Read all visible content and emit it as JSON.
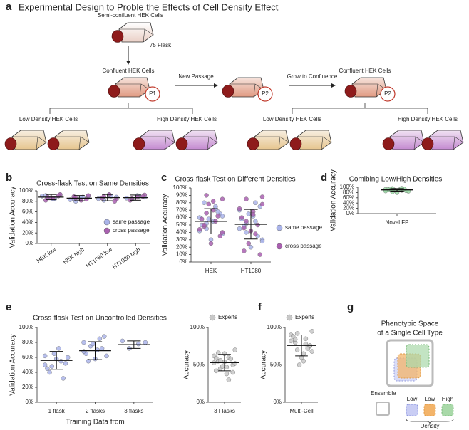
{
  "figure_title": "Experimental Design to Proble the Effects of Cell Density Effect",
  "panel_labels": [
    "a",
    "b",
    "c",
    "d",
    "e",
    "f",
    "g"
  ],
  "diagram_a": {
    "semi_confluent": "Semi-confluent HEK Cells",
    "flask_type": "T75 Flask",
    "confluent_1": "Confluent HEK Cells",
    "p1": "P1",
    "new_passage": "New Passage",
    "p2_a": "P2",
    "grow": "Grow to Confluence",
    "confluent_2": "Confluent HEK Cells",
    "p2_b": "P2",
    "low_1": "Low Density HEK Cells",
    "high_1": "High Density HEK Cells",
    "low_2": "Low Density HEK Cells",
    "high_2": "High Density HEK Cells"
  },
  "diagram_g": {
    "title_1": "Phenotypic Space",
    "title_2": "of a Single Cell Type",
    "ensemble": "Ensemble",
    "low_1": "Low",
    "low_2": "Low",
    "high": "High",
    "density": "Density"
  },
  "chart_data": [
    {
      "type": "strip",
      "title": "Cross-flask Test on Same Densities",
      "y_label": "Validation Accuracy",
      "categories": [
        "HEK low",
        "HEK high",
        "HT1080 low",
        "HT1080 high"
      ],
      "series": [
        {
          "name": "same passage",
          "color": "#aab4ea",
          "values": [
            [
              90,
              85,
              88,
              92,
              84,
              91
            ],
            [
              83,
              88,
              80,
              90,
              86,
              85
            ],
            [
              85,
              90,
              82,
              88,
              92
            ],
            [
              86,
              90,
              84,
              88,
              91
            ]
          ]
        },
        {
          "name": "cross passage",
          "color": "#a960b0",
          "values": [
            [
              88,
              93,
              86,
              82,
              90,
              87
            ],
            [
              86,
              91,
              82,
              89,
              84
            ],
            [
              89,
              84,
              93,
              86,
              80
            ],
            [
              85,
              92,
              88,
              82,
              89
            ]
          ]
        }
      ],
      "mean": [
        88,
        86,
        87,
        87
      ],
      "sd": [
        5,
        5,
        6,
        5
      ],
      "legend": "lower right",
      "ylim": [
        0,
        100
      ],
      "yticks": [
        {
          "value": 0,
          "label": "0%"
        },
        {
          "value": 20,
          "label": "20%"
        },
        {
          "value": 40,
          "label": "40%"
        },
        {
          "value": 60,
          "label": "60%"
        },
        {
          "value": 80,
          "label": "80%"
        },
        {
          "value": 100,
          "label": "100%"
        }
      ]
    },
    {
      "type": "strip",
      "title": "Cross-flask Test on Different Densities",
      "y_label": "Validation Accuracy",
      "categories": [
        "HEK",
        "HT1080"
      ],
      "series": [
        {
          "name": "same passage",
          "color": "#aab4ea",
          "values": [
            [
              60,
              72,
              45,
              38,
              55,
              80,
              65,
              30,
              50,
              68,
              58,
              42,
              75,
              52,
              62
            ],
            [
              70,
              55,
              40,
              30,
              62,
              48,
              75,
              20,
              58,
              35,
              65,
              45,
              80,
              52,
              28
            ]
          ]
        },
        {
          "name": "cross passage",
          "color": "#a960b0",
          "values": [
            [
              90,
              85,
              70,
              48,
              35,
              25,
              58,
              62,
              78,
              44,
              55,
              66,
              40,
              82,
              50
            ],
            [
              85,
              78,
              68,
              15,
              10,
              42,
              60,
              50,
              25,
              72,
              38,
              55,
              88,
              64,
              46
            ]
          ]
        }
      ],
      "mean": [
        55,
        51
      ],
      "sd": [
        17,
        20
      ],
      "legend": "right",
      "ylim": [
        0,
        100
      ],
      "yticks": [
        {
          "value": 0,
          "label": "0%"
        },
        {
          "value": 10,
          "label": "10%"
        },
        {
          "value": 20,
          "label": "20%"
        },
        {
          "value": 30,
          "label": "30%"
        },
        {
          "value": 40,
          "label": "40%"
        },
        {
          "value": 50,
          "label": "50%"
        },
        {
          "value": 60,
          "label": "60%"
        },
        {
          "value": 70,
          "label": "70%"
        },
        {
          "value": 80,
          "label": "80%"
        },
        {
          "value": 90,
          "label": "90%"
        },
        {
          "value": 100,
          "label": "100%"
        }
      ]
    },
    {
      "type": "strip",
      "title": "Comibing Low/High Densities",
      "y_label": "Validation Accuracy",
      "categories": [
        "Novel FP"
      ],
      "series": [
        {
          "color": "#9ad9a6",
          "values": [
            [
              92,
              88,
              95,
              85,
              90,
              93,
              87,
              80,
              91,
              94,
              89,
              86,
              96,
              83
            ]
          ]
        }
      ],
      "mean": [
        90
      ],
      "sd": [
        5
      ],
      "ylim": [
        0,
        100
      ],
      "yticks": [
        {
          "value": 0,
          "label": "0%"
        },
        {
          "value": 20,
          "label": "20%"
        },
        {
          "value": 40,
          "label": "40%"
        },
        {
          "value": 60,
          "label": "60%"
        },
        {
          "value": 80,
          "label": "80%"
        },
        {
          "value": 100,
          "label": "100%"
        }
      ]
    },
    {
      "type": "strip",
      "title": "Cross-flask Test on Uncontrolled Densities",
      "y_label": "Validation Accuracy",
      "x_label": "Training Data from",
      "categories": [
        "1 flask",
        "2 flasks",
        "3 flasks"
      ],
      "series": [
        {
          "color": "#aab4ea",
          "values": [
            [
              62,
              55,
              48,
              60,
              72,
              40,
              52,
              58,
              45,
              32,
              65,
              50
            ],
            [
              80,
              85,
              75,
              62,
              70,
              55,
              88,
              58,
              65,
              72,
              78,
              68
            ],
            [
              82,
              78,
              72,
              80
            ]
          ]
        }
      ],
      "mean": [
        56,
        69,
        77
      ],
      "sd": [
        12,
        12,
        5
      ],
      "ylim": [
        0,
        100
      ],
      "yticks": [
        {
          "value": 0,
          "label": "0%"
        },
        {
          "value": 20,
          "label": "20%"
        },
        {
          "value": 40,
          "label": "40%"
        },
        {
          "value": 60,
          "label": "60%"
        },
        {
          "value": 80,
          "label": "80%"
        },
        {
          "value": 100,
          "label": "100%"
        }
      ]
    },
    {
      "type": "strip",
      "y_label": "Accuracy",
      "categories": [
        "3 Flasks"
      ],
      "series": [
        {
          "name": "Experts",
          "color": "#c8c8c8",
          "values": [
            [
              53,
              60,
              45,
              70,
              38,
              55,
              50,
              65,
              42,
              58,
              48,
              62,
              30,
              56,
              52,
              47,
              66,
              40,
              54,
              59
            ]
          ]
        }
      ],
      "mean": [
        53
      ],
      "sd": [
        11
      ],
      "legend": "top",
      "ylim": [
        0,
        100
      ],
      "yticks": [
        {
          "value": 0,
          "label": "0%"
        },
        {
          "value": 50,
          "label": "50%"
        },
        {
          "value": 100,
          "label": "100%"
        }
      ]
    },
    {
      "type": "strip",
      "y_label": "Accuracy",
      "categories": [
        "Multi-Cell"
      ],
      "series": [
        {
          "name": "Experts",
          "color": "#c8c8c8",
          "values": [
            [
              90,
              85,
              70,
              95,
              65,
              80,
              75,
              60,
              88,
              72,
              50,
              82,
              78,
              92,
              68,
              55,
              84,
              76
            ]
          ]
        }
      ],
      "mean": [
        76
      ],
      "sd": [
        14
      ],
      "legend": "top",
      "ylim": [
        0,
        100
      ],
      "yticks": [
        {
          "value": 0,
          "label": "0%"
        },
        {
          "value": 50,
          "label": "50%"
        },
        {
          "value": 100,
          "label": "100%"
        }
      ]
    }
  ]
}
